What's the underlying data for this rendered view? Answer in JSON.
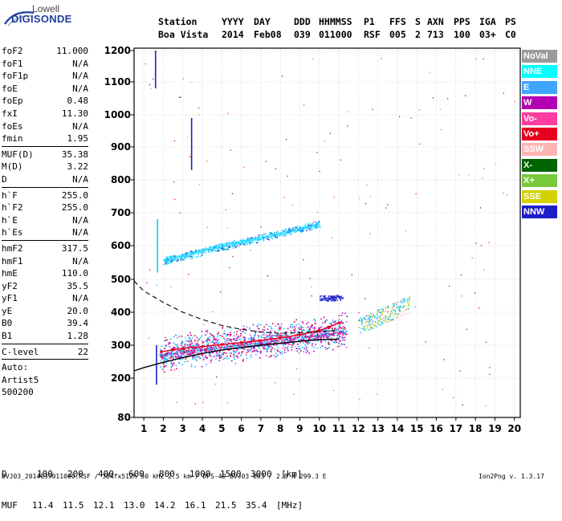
{
  "logo": {
    "line1": "Lowell",
    "line2": "DIGISONDE"
  },
  "header": {
    "row1": [
      "Station",
      "YYYY",
      "DAY",
      "DDD",
      "HHMMSS",
      "P1",
      "FFS",
      "S",
      "AXN",
      "PPS",
      "IGA",
      "PS"
    ],
    "row2": [
      "Boa Vista",
      "2014",
      "Feb08",
      "039",
      "011000",
      "RSF",
      "005",
      "2",
      "713",
      "100",
      "03+",
      "C0"
    ]
  },
  "parameters": {
    "group1": [
      {
        "name": "foF2",
        "value": "11.000"
      },
      {
        "name": "foF1",
        "value": "N/A"
      },
      {
        "name": "foF1p",
        "value": "N/A"
      },
      {
        "name": "foE",
        "value": "N/A"
      },
      {
        "name": "foEp",
        "value": "0.48"
      },
      {
        "name": "fxI",
        "value": "11.30"
      },
      {
        "name": "foEs",
        "value": "N/A"
      },
      {
        "name": "fmin",
        "value": "1.95"
      }
    ],
    "group2": [
      {
        "name": "MUF(D)",
        "value": "35.38"
      },
      {
        "name": "M(D)",
        "value": "3.22"
      },
      {
        "name": "D",
        "value": "N/A"
      }
    ],
    "group3": [
      {
        "name": "h`F",
        "value": "255.0"
      },
      {
        "name": "h`F2",
        "value": "255.0"
      },
      {
        "name": "h`E",
        "value": "N/A"
      },
      {
        "name": "h`Es",
        "value": "N/A"
      }
    ],
    "group4": [
      {
        "name": "hmF2",
        "value": "317.5"
      },
      {
        "name": "hmF1",
        "value": "N/A"
      },
      {
        "name": "hmE",
        "value": "110.0"
      },
      {
        "name": "yF2",
        "value": "35.5"
      },
      {
        "name": "yF1",
        "value": "N/A"
      },
      {
        "name": "yE",
        "value": "20.0"
      },
      {
        "name": "B0",
        "value": "39.4"
      },
      {
        "name": "B1",
        "value": "1.28"
      }
    ],
    "group5": [
      {
        "name": "C-level",
        "value": "22"
      }
    ],
    "auto": [
      "Auto:",
      "Artist5",
      "500200"
    ]
  },
  "legend": [
    {
      "label": "NoVal",
      "bg": "#9b9b9b",
      "fg": "#ffffff"
    },
    {
      "label": "NNE",
      "bg": "#00ffff",
      "fg": "#ffffff"
    },
    {
      "label": "E",
      "bg": "#3fa6ff",
      "fg": "#ffffff"
    },
    {
      "label": "W",
      "bg": "#b400b4",
      "fg": "#ffffff"
    },
    {
      "label": "Vo-",
      "bg": "#ff3ca0",
      "fg": "#ffffff"
    },
    {
      "label": "Vo+",
      "bg": "#e6001e",
      "fg": "#ffffff"
    },
    {
      "label": "SSW",
      "bg": "#ffb4b4",
      "fg": "#ffffff"
    },
    {
      "label": "X-",
      "bg": "#006400",
      "fg": "#ffffff"
    },
    {
      "label": "X+",
      "bg": "#78c83c",
      "fg": "#ffffff"
    },
    {
      "label": "SSE",
      "bg": "#d2d200",
      "fg": "#ffffff"
    },
    {
      "label": "NNW",
      "bg": "#1e1ec8",
      "fg": "#ffffff"
    }
  ],
  "bottom": {
    "row1": [
      "D",
      "100",
      "200",
      "400",
      "600",
      "800",
      "1000",
      "1500",
      "3000",
      "[km]"
    ],
    "row2": [
      "MUF",
      "11.4",
      "11.5",
      "12.1",
      "13.0",
      "14.2",
      "16.1",
      "21.5",
      "35.4",
      "[MHz]"
    ],
    "footer": "BVJ03_2014039011000.RSF / 384fx512h 50 kHz 2.5 km / DPS-4D BVJ03 003 / 2.8 N 299.3 E",
    "version": "Ion2Png v. 1.3.17"
  },
  "chart_data": {
    "type": "scatter",
    "title": "",
    "xlabel": "",
    "ylabel": "",
    "xlim": [
      0.5,
      20.3
    ],
    "ylim": [
      80,
      1210
    ],
    "x_ticks": [
      1,
      2,
      3,
      4,
      5,
      6,
      7,
      8,
      9,
      10,
      11,
      12,
      13,
      14,
      15,
      16,
      17,
      18,
      19,
      20
    ],
    "y_ticks": [
      80,
      200,
      300,
      400,
      500,
      600,
      700,
      800,
      900,
      1000,
      1100,
      1200
    ],
    "y_axis_scale": "nonlinear",
    "legend_position": "right",
    "series": [
      {
        "name": "F-layer O trace (Vo+)",
        "color": "#e6001e",
        "kind": "line",
        "x": [
          1.9,
          2.5,
          3,
          4,
          5,
          6,
          7,
          8,
          9,
          10,
          10.5,
          11
        ],
        "y": [
          280,
          286,
          290,
          296,
          302,
          308,
          314,
          322,
          332,
          345,
          355,
          368
        ]
      },
      {
        "name": "Profile (solid)",
        "color": "#000000",
        "kind": "line",
        "x": [
          0.5,
          1,
          2,
          3,
          4,
          5,
          6,
          7,
          8,
          9,
          10,
          11
        ],
        "y": [
          222,
          232,
          248,
          262,
          275,
          285,
          293,
          300,
          306,
          312,
          317,
          318
        ]
      },
      {
        "name": "Profile (dashed)",
        "color": "#000000",
        "kind": "dashed",
        "x": [
          0.5,
          1,
          2,
          3,
          4,
          5,
          6,
          7,
          8,
          9,
          10,
          11
        ],
        "y": [
          495,
          465,
          430,
          400,
          378,
          360,
          348,
          340,
          336,
          338,
          342,
          345
        ]
      },
      {
        "name": "Multi-hop (NNE)",
        "color": "#00d2ff",
        "kind": "band",
        "x": [
          2,
          3,
          4,
          5,
          6,
          7,
          8,
          9,
          10
        ],
        "y": [
          555,
          570,
          585,
          600,
          610,
          623,
          635,
          650,
          665
        ]
      },
      {
        "name": "Es spread (NNW)",
        "color": "#1e1ec8",
        "kind": "band",
        "x": [
          10,
          10.5,
          11
        ],
        "y": [
          438,
          442,
          450
        ]
      }
    ]
  }
}
